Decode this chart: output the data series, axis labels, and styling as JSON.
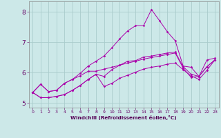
{
  "xlabel": "Windchill (Refroidissement éolien,°C)",
  "background_color": "#cce8e8",
  "line_color": "#aa00aa",
  "grid_color": "#b0d8d8",
  "plot_bg": "#cce8e8",
  "xlim": [
    -0.5,
    23.5
  ],
  "ylim": [
    4.85,
    8.35
  ],
  "xticks": [
    0,
    1,
    2,
    3,
    4,
    5,
    6,
    7,
    8,
    9,
    10,
    11,
    12,
    13,
    14,
    15,
    16,
    17,
    18,
    19,
    20,
    21,
    22,
    23
  ],
  "yticks": [
    5,
    6,
    7,
    8
  ],
  "series1_y": [
    5.35,
    5.62,
    5.38,
    5.42,
    5.65,
    5.78,
    5.9,
    6.05,
    6.05,
    6.12,
    6.18,
    6.25,
    6.32,
    6.38,
    6.45,
    6.5,
    6.55,
    6.6,
    6.65,
    6.15,
    5.85,
    5.88,
    6.2,
    6.42
  ],
  "series2_y": [
    5.35,
    5.62,
    5.38,
    5.42,
    5.65,
    5.78,
    5.98,
    6.22,
    6.38,
    6.55,
    6.82,
    7.12,
    7.38,
    7.55,
    7.55,
    8.08,
    7.72,
    7.35,
    7.05,
    6.22,
    6.18,
    5.88,
    6.42,
    6.48
  ],
  "series3_y": [
    5.35,
    5.18,
    5.18,
    5.22,
    5.28,
    5.42,
    5.58,
    5.78,
    5.95,
    5.88,
    6.1,
    6.25,
    6.38,
    6.4,
    6.52,
    6.55,
    6.6,
    6.65,
    6.68,
    6.2,
    5.95,
    5.88,
    6.2,
    6.42
  ],
  "series4_y": [
    5.35,
    5.18,
    5.18,
    5.22,
    5.28,
    5.42,
    5.58,
    5.78,
    5.95,
    5.55,
    5.65,
    5.82,
    5.92,
    6.02,
    6.12,
    6.18,
    6.22,
    6.28,
    6.32,
    6.1,
    5.9,
    5.78,
    6.08,
    6.42
  ]
}
